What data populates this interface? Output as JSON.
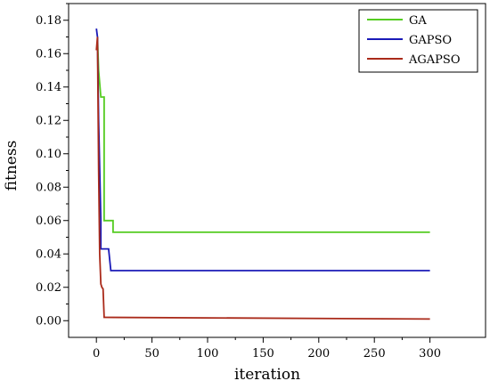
{
  "chart_data": {
    "type": "line",
    "title": "",
    "xlabel": "iteration",
    "ylabel": "fitness",
    "xlim": [
      -25,
      350
    ],
    "ylim": [
      -0.01,
      0.19
    ],
    "xticks": [
      0,
      50,
      100,
      150,
      200,
      250,
      300
    ],
    "yticks": [
      0.0,
      0.02,
      0.04,
      0.06,
      0.08,
      0.1,
      0.12,
      0.14,
      0.16,
      0.18
    ],
    "xtick_labels": [
      "0",
      "50",
      "100",
      "150",
      "200",
      "250",
      "300"
    ],
    "ytick_labels": [
      "0.00",
      "0.02",
      "0.04",
      "0.06",
      "0.08",
      "0.10",
      "0.12",
      "0.14",
      "0.16",
      "0.18"
    ],
    "grid": false,
    "legend_position": "top-right",
    "series": [
      {
        "name": "GA",
        "color": "#55cc22",
        "points": [
          [
            1,
            0.17
          ],
          [
            2,
            0.15
          ],
          [
            4,
            0.134
          ],
          [
            7,
            0.134
          ],
          [
            7,
            0.06
          ],
          [
            15,
            0.06
          ],
          [
            15,
            0.053
          ],
          [
            300,
            0.053
          ]
        ]
      },
      {
        "name": "GAPSO",
        "color": "#1a1ab8",
        "points": [
          [
            0,
            0.175
          ],
          [
            1,
            0.17
          ],
          [
            2,
            0.12
          ],
          [
            4,
            0.06
          ],
          [
            4,
            0.043
          ],
          [
            11,
            0.043
          ],
          [
            13,
            0.03
          ],
          [
            300,
            0.03
          ]
        ]
      },
      {
        "name": "AGAPSO",
        "color": "#aa2a1a",
        "points": [
          [
            0,
            0.162
          ],
          [
            1,
            0.17
          ],
          [
            2,
            0.09
          ],
          [
            3,
            0.04
          ],
          [
            4,
            0.022
          ],
          [
            5,
            0.02
          ],
          [
            6,
            0.019
          ],
          [
            7,
            0.002
          ],
          [
            300,
            0.001
          ]
        ]
      }
    ]
  }
}
